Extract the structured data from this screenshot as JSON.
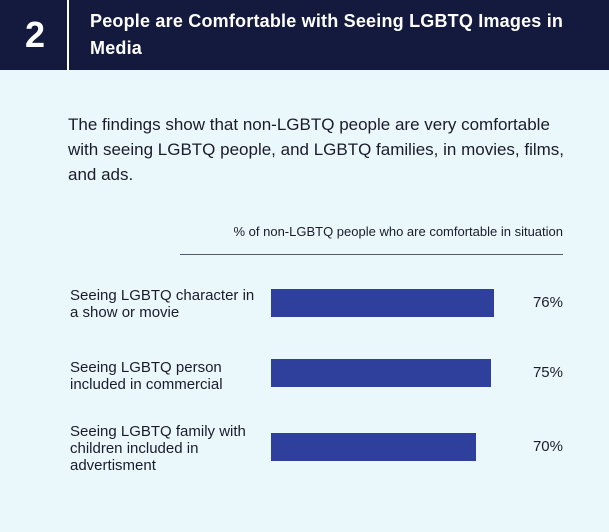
{
  "header": {
    "number": "2",
    "title": "People are Comfortable with Seeing LGBTQ Images in Media"
  },
  "intro": "The findings show that non-LGBTQ people are very comfortable with seeing LGBTQ people, and LGBTQ families, in movies, films, and ads.",
  "colors": {
    "header_bg": "#141a3d",
    "bar": "#2e3f9c",
    "page_bg": "#ebf8fb"
  },
  "chart_data": {
    "type": "bar",
    "orientation": "horizontal",
    "title": "% of non-LGBTQ people who are comfortable in situation",
    "categories": [
      "Seeing LGBTQ character in a show or movie",
      "Seeing LGBTQ person included in commercial",
      "Seeing LGBTQ family with children included in advertisment"
    ],
    "values": [
      76,
      75,
      70
    ],
    "value_labels": [
      "76%",
      "75%",
      "70%"
    ],
    "xlim": [
      0,
      100
    ]
  }
}
